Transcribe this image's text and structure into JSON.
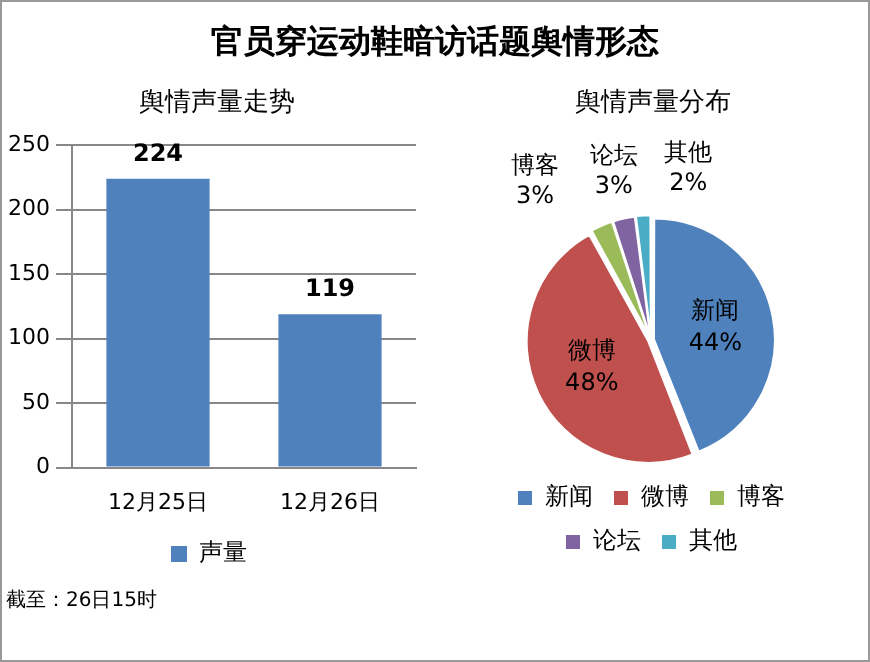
{
  "chart_data": [
    {
      "type": "bar",
      "title": "官员穿运动鞋暗访话题舆情形态",
      "subtitle": "舆情声量走势",
      "categories": [
        "12月25日",
        "12月26日"
      ],
      "series": [
        {
          "name": "声量",
          "color": "#4f81bd",
          "values": [
            224,
            119
          ]
        }
      ],
      "ylim": [
        0,
        250
      ],
      "yticks": [
        0,
        50,
        100,
        150,
        200,
        250
      ],
      "grid": "y",
      "legend": "bottom",
      "data_labels": true,
      "annotations": [
        "截至：26日15时"
      ]
    },
    {
      "type": "pie",
      "subtitle": "舆情声量分布",
      "categories": [
        "新闻",
        "微博",
        "博客",
        "论坛",
        "其他"
      ],
      "values": [
        44,
        48,
        3,
        3,
        2
      ],
      "colors": [
        "#4f81bd",
        "#c0504d",
        "#9bbb59",
        "#8064a2",
        "#4bacc6"
      ],
      "value_labels": [
        "44%",
        "48%",
        "3%",
        "3%",
        "2%"
      ],
      "legend": "bottom"
    }
  ]
}
